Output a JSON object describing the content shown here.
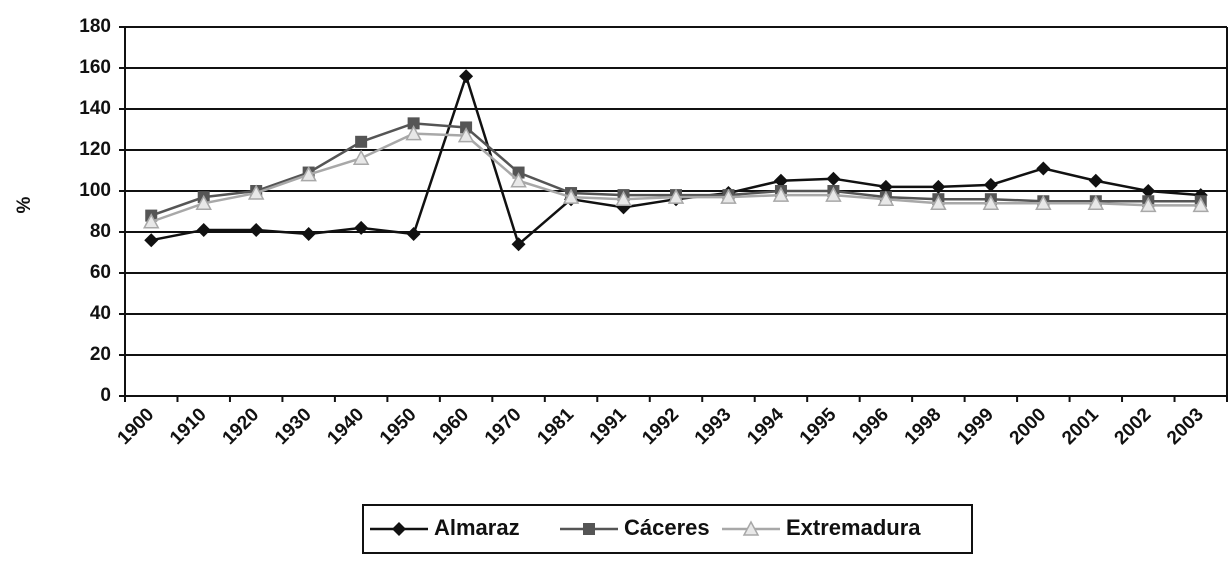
{
  "chart_data": {
    "type": "line",
    "y_label": "%",
    "categories": [
      "1900",
      "1910",
      "1920",
      "1930",
      "1940",
      "1950",
      "1960",
      "1970",
      "1981",
      "1991",
      "1992",
      "1993",
      "1994",
      "1995",
      "1996",
      "1998",
      "1999",
      "2000",
      "2001",
      "2002",
      "2003"
    ],
    "series": [
      {
        "name": "Almaraz",
        "color": "#111111",
        "marker": "diamond",
        "values": [
          76,
          81,
          81,
          79,
          82,
          79,
          156,
          74,
          96,
          92,
          96,
          99,
          105,
          106,
          102,
          102,
          103,
          111,
          105,
          100,
          98
        ]
      },
      {
        "name": "Cáceres",
        "color": "#555555",
        "marker": "square",
        "values": [
          88,
          97,
          100,
          109,
          124,
          133,
          131,
          109,
          99,
          98,
          98,
          98,
          100,
          100,
          97,
          96,
          96,
          95,
          95,
          95,
          95
        ]
      },
      {
        "name": "Extremadura",
        "color": "#a8a8a8",
        "marker": "triangle",
        "values": [
          85,
          94,
          99,
          108,
          116,
          128,
          127,
          105,
          97,
          96,
          97,
          97,
          98,
          98,
          96,
          94,
          94,
          94,
          94,
          93,
          93
        ]
      }
    ],
    "ylim": [
      0,
      180
    ],
    "yticks": [
      0,
      20,
      40,
      60,
      80,
      100,
      120,
      140,
      160,
      180
    ],
    "grid": true
  }
}
